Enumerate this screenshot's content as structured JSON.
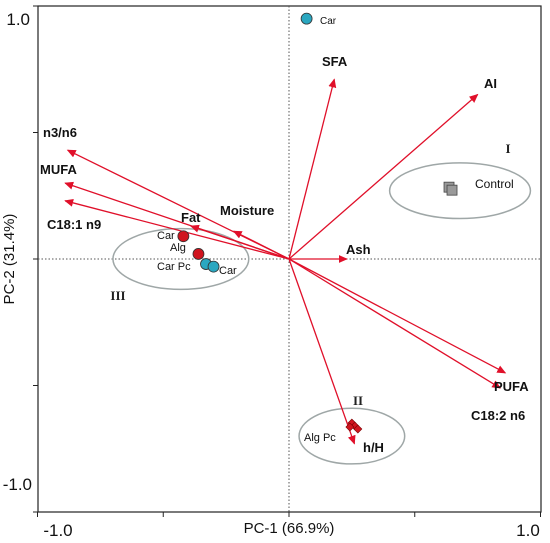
{
  "chart_data": {
    "type": "biplot",
    "xlabel": "PC-1 (66.9%)",
    "ylabel": "PC-2 (31.4%)",
    "xlim": [
      -1.0,
      1.0
    ],
    "ylim": [
      -1.0,
      1.0
    ],
    "x_tick_labels": [
      "-1.0",
      "1.0"
    ],
    "y_tick_labels": [
      "1.0",
      "-1.0"
    ],
    "loadings": [
      {
        "name": "n3/n6",
        "x": -0.88,
        "y": 0.43
      },
      {
        "name": "MUFA",
        "x": -0.89,
        "y": 0.3
      },
      {
        "name": "C18:1 n9",
        "x": -0.89,
        "y": 0.23
      },
      {
        "name": "Fat",
        "x": -0.39,
        "y": 0.13
      },
      {
        "name": "Moisture",
        "x": -0.22,
        "y": 0.11
      },
      {
        "name": "SFA",
        "x": 0.18,
        "y": 0.71
      },
      {
        "name": "AI",
        "x": 0.75,
        "y": 0.65
      },
      {
        "name": "Ash",
        "x": 0.23,
        "y": 0.0
      },
      {
        "name": "PUFA",
        "x": 0.86,
        "y": -0.45
      },
      {
        "name": "C18:2 n6",
        "x": 0.84,
        "y": -0.51
      },
      {
        "name": "h/H",
        "x": 0.26,
        "y": -0.73
      }
    ],
    "scores": [
      {
        "label": "Car",
        "group": "blue",
        "x": 0.07,
        "y": 0.95
      },
      {
        "label": "Control",
        "group": "grey",
        "x": 0.68,
        "y": 0.28
      },
      {
        "label": "Car",
        "group": "red",
        "x": -0.42,
        "y": 0.09
      },
      {
        "label": "Alg",
        "group": "red",
        "x": -0.36,
        "y": 0.02
      },
      {
        "label": "Car Pc",
        "group": "blue",
        "x": -0.33,
        "y": -0.02
      },
      {
        "label": "Car",
        "group": "blue",
        "x": -0.3,
        "y": -0.03
      },
      {
        "label": "Alg Pc",
        "group": "red",
        "x": 0.25,
        "y": -0.68
      }
    ],
    "ellipses": [
      {
        "label": "I",
        "cx": 0.68,
        "cy": 0.27,
        "rx": 0.28,
        "ry": 0.11
      },
      {
        "label": "III",
        "cx": -0.43,
        "cy": 0.0,
        "rx": 0.27,
        "ry": 0.12
      },
      {
        "label": "II",
        "cx": 0.25,
        "cy": -0.7,
        "rx": 0.21,
        "ry": 0.11
      }
    ],
    "colors": {
      "arrow": "#e0102a",
      "red_point": "#d0141e",
      "blue_point": "#2aa7c0",
      "grey_point": "#9a9a9a",
      "ellipse": "#9fa7a7"
    }
  }
}
